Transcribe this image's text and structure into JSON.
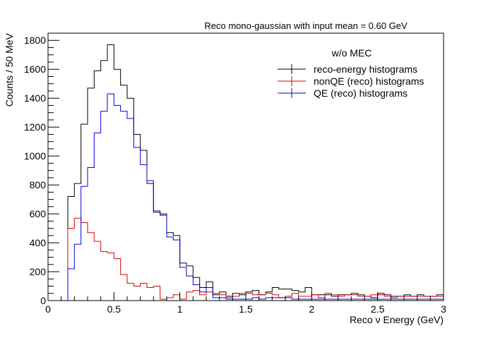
{
  "chart_data": {
    "type": "histogram",
    "title": "Reco mono-gaussian with input mean = 0.60 GeV",
    "xlabel": "Reco ν Energy (GeV)",
    "ylabel": "Counts / 50 MeV",
    "xlim": [
      0,
      3
    ],
    "ylim": [
      0,
      1850
    ],
    "bin_width": 0.05,
    "x_ticks": [
      0,
      0.5,
      1,
      1.5,
      2,
      2.5,
      3
    ],
    "x_tick_labels": [
      "0",
      "0.5",
      "1",
      "1.5",
      "2",
      "2.5",
      "3"
    ],
    "y_ticks": [
      0,
      200,
      400,
      600,
      800,
      1000,
      1200,
      1400,
      1600,
      1800
    ],
    "y_tick_labels": [
      "0",
      "200",
      "400",
      "600",
      "800",
      "1000",
      "1200",
      "1400",
      "1600",
      "1800"
    ],
    "legend": {
      "header": "w/o MEC",
      "position": "top-right",
      "border": false
    },
    "grid": false,
    "series": [
      {
        "name": "reco-energy histograms",
        "color": "#000000",
        "values": [
          0,
          0,
          0,
          720,
          810,
          1220,
          1470,
          1590,
          1660,
          1770,
          1600,
          1490,
          1400,
          1150,
          1040,
          810,
          620,
          600,
          470,
          450,
          260,
          240,
          160,
          90,
          130,
          40,
          60,
          30,
          50,
          40,
          60,
          70,
          40,
          60,
          90,
          80,
          80,
          70,
          60,
          90,
          40,
          40,
          40,
          30,
          40,
          40,
          50,
          40,
          30,
          20,
          50,
          40,
          30,
          30,
          40,
          30,
          40,
          30,
          30,
          40
        ]
      },
      {
        "name": "nonQE (reco) histograms",
        "color": "#dd0000",
        "values": [
          0,
          0,
          0,
          500,
          570,
          540,
          470,
          410,
          340,
          330,
          290,
          180,
          120,
          100,
          120,
          90,
          100,
          10,
          20,
          40,
          10,
          60,
          70,
          40,
          60,
          50,
          40,
          20,
          30,
          50,
          50,
          40,
          40,
          50,
          40,
          20,
          30,
          50,
          30,
          30,
          40,
          20,
          50,
          40,
          30,
          40,
          40,
          30,
          30,
          40,
          40,
          30,
          20,
          30,
          30,
          30,
          30,
          30,
          30,
          30
        ]
      },
      {
        "name": "QE (reco) histograms",
        "color": "#0000dd",
        "values": [
          0,
          0,
          0,
          220,
          390,
          790,
          920,
          1160,
          1310,
          1430,
          1350,
          1310,
          1260,
          1060,
          940,
          830,
          610,
          590,
          440,
          420,
          230,
          170,
          110,
          60,
          90,
          20,
          20,
          10,
          10,
          10,
          10,
          20,
          10,
          20,
          20,
          20,
          20,
          10,
          10,
          10,
          10,
          10,
          10,
          10,
          10,
          10,
          10,
          10,
          10,
          10,
          10,
          10,
          10,
          10,
          10,
          10,
          10,
          10,
          10,
          10
        ]
      }
    ]
  }
}
